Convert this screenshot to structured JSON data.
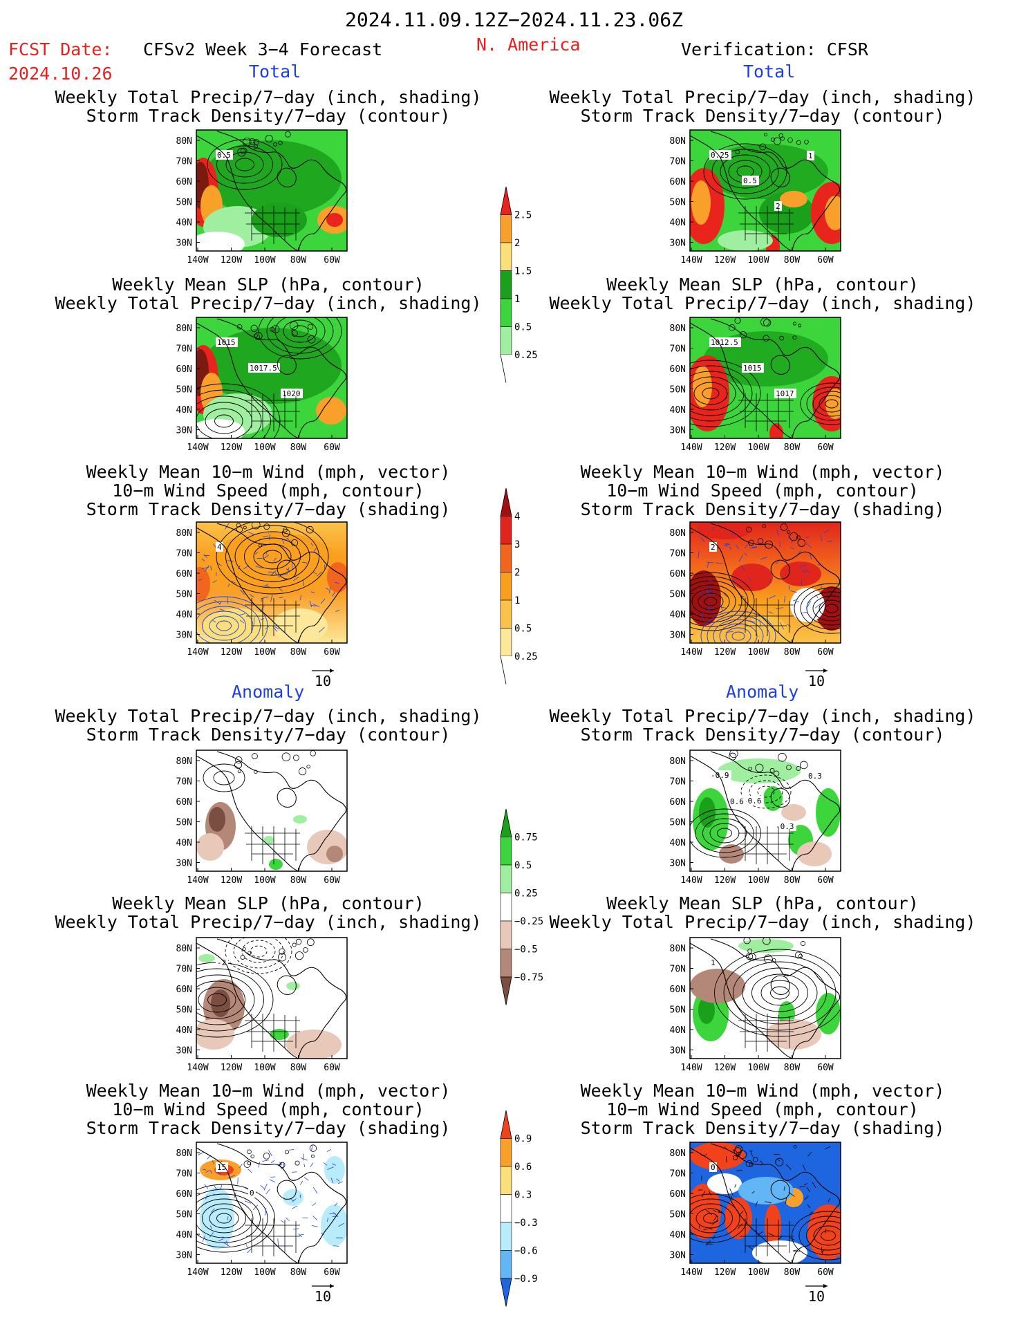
{
  "header": {
    "date_range": "2024.11.09.12Z−2024.11.23.06Z",
    "fcst_label": "FCST Date:",
    "fcst_date": "2024.10.26",
    "model_title": "CFSv2 Week 3−4 Forecast",
    "region": "N. America",
    "verification": "Verification: CFSR"
  },
  "sections": {
    "total": "Total",
    "anomaly": "Anomaly"
  },
  "titles": {
    "precip_storm": [
      "Weekly Total Precip/7−day (inch, shading)",
      "Storm Track Density/7−day (contour)"
    ],
    "slp_precip": [
      "Weekly Mean SLP (hPa, contour)",
      "Weekly Total Precip/7−day (inch, shading)"
    ],
    "wind_storm": [
      "Weekly Mean 10−m Wind (mph, vector)",
      "10−m Wind Speed (mph, contour)",
      "Storm Track Density/7−day (shading)"
    ]
  },
  "axes": {
    "lat_labels": [
      "80N",
      "70N",
      "60N",
      "50N",
      "40N",
      "30N"
    ],
    "lon_labels": [
      "140W",
      "120W",
      "100W",
      "80W",
      "60W"
    ]
  },
  "vector_ref": "10",
  "map_annotations": {
    "fcst_total_precip": [
      "0.5"
    ],
    "obs_total_precip": [
      "0.25",
      "0.5",
      "2",
      "1"
    ],
    "fcst_total_slp": [
      "1015",
      "1017.5",
      "1020"
    ],
    "obs_total_slp": [
      "1012.5",
      "1015",
      "1017"
    ],
    "fcst_total_wind": [
      "4"
    ],
    "obs_total_wind": [
      "2"
    ],
    "obs_anom_precip": [
      "-0.9",
      "-0.6",
      "-0.3",
      "0.3",
      "0.6"
    ],
    "fcst_anom_slp": [
      "-2"
    ],
    "obs_anom_slp": [
      "1"
    ],
    "fcst_anom_wind": [
      "15",
      "0"
    ],
    "obs_anom_wind": [
      "0"
    ]
  },
  "colorbars": {
    "precip_total": {
      "labels": [
        "2.5",
        "2",
        "1.5",
        "1",
        "0.5",
        "0.25"
      ],
      "colors": [
        "#e8241c",
        "#f9a02a",
        "#fbe07a",
        "#1aa01a",
        "#3cd63c",
        "#a0eea0",
        "#ffffff"
      ]
    },
    "storm_total": {
      "labels": [
        "4",
        "3",
        "2",
        "1",
        "0.5",
        "0.25"
      ],
      "colors": [
        "#a01010",
        "#e0261c",
        "#f2651c",
        "#f99e1e",
        "#fbc24a",
        "#fde89a",
        "#ffffff"
      ]
    },
    "precip_anom": {
      "labels": [
        "0.75",
        "0.5",
        "0.25",
        "−0.25",
        "−0.5",
        "−0.75"
      ],
      "colors": [
        "#1aa01a",
        "#3cd63c",
        "#a0eea0",
        "#ffffff",
        "#e8c8b8",
        "#b48878",
        "#7a4e40"
      ]
    },
    "storm_anom": {
      "labels": [
        "0.9",
        "0.6",
        "0.3",
        "−0.3",
        "−0.6",
        "−0.9"
      ],
      "colors": [
        "#f2421c",
        "#f9a02a",
        "#fbe07a",
        "#ffffff",
        "#b8ecfb",
        "#62b6f5",
        "#1e66e0"
      ]
    }
  }
}
